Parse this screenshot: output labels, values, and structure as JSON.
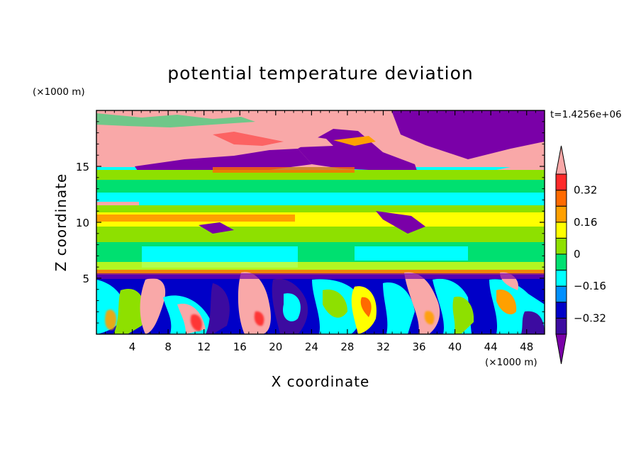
{
  "chart_data": {
    "type": "heatmap",
    "title": "potential temperature deviation",
    "xlabel": "X coordinate",
    "ylabel": "Z coordinate",
    "x_units": "(×1000 m)",
    "y_units": "(×1000 m)",
    "time_label": "t=1.4256e+06",
    "xlim": [
      0,
      50
    ],
    "ylim": [
      0,
      20
    ],
    "x_ticks": [
      4,
      8,
      12,
      16,
      20,
      24,
      28,
      32,
      36,
      40,
      44,
      48
    ],
    "y_ticks": [
      5,
      10,
      15
    ],
    "colorbar": {
      "levels": [
        -0.4,
        -0.32,
        -0.24,
        -0.16,
        -0.08,
        0,
        0.08,
        0.16,
        0.24,
        0.32,
        0.4
      ],
      "labeled_levels": [
        "0.32",
        "0.16",
        "0",
        "−0.16",
        "−0.32"
      ],
      "labeled_values": [
        0.32,
        0.16,
        0,
        -0.16,
        -0.32
      ],
      "colors": [
        "#7a00a8",
        "#3c0ba0",
        "#0000c8",
        "#0090ff",
        "#00ffff",
        "#00e070",
        "#8ee000",
        "#ffff00",
        "#ffa000",
        "#ff6a00",
        "#ff2a2a",
        "#f9a8a8"
      ]
    },
    "bands": [
      {
        "z": [
          0,
          5.5
        ],
        "description_value": "mixed"
      },
      {
        "z": [
          5.5,
          9
        ],
        "value": -0.05
      },
      {
        "z": [
          9,
          12
        ],
        "value": 0.1
      },
      {
        "z": [
          12,
          14.5
        ],
        "value": -0.1
      },
      {
        "z": [
          14.5,
          20
        ],
        "value": 0.3
      }
    ]
  }
}
